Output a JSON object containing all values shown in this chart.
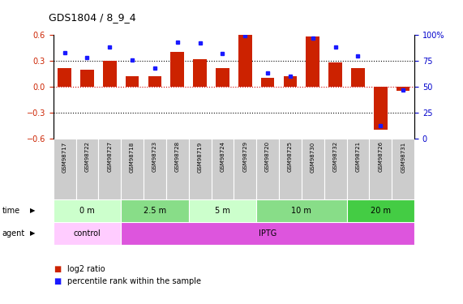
{
  "title": "GDS1804 / 8_9_4",
  "samples": [
    "GSM98717",
    "GSM98722",
    "GSM98727",
    "GSM98718",
    "GSM98723",
    "GSM98728",
    "GSM98719",
    "GSM98724",
    "GSM98729",
    "GSM98720",
    "GSM98725",
    "GSM98730",
    "GSM98732",
    "GSM98721",
    "GSM98726",
    "GSM98731"
  ],
  "log2_ratio": [
    0.22,
    0.2,
    0.3,
    0.12,
    0.12,
    0.4,
    0.32,
    0.22,
    0.6,
    0.1,
    0.12,
    0.58,
    0.28,
    0.22,
    -0.5,
    -0.05
  ],
  "pct_rank": [
    83,
    78,
    88,
    76,
    68,
    93,
    92,
    82,
    99,
    63,
    60,
    97,
    88,
    80,
    12,
    47
  ],
  "bar_color": "#cc2200",
  "dot_color": "#1a1aff",
  "ylim_left": [
    -0.6,
    0.6
  ],
  "ylim_right": [
    0,
    100
  ],
  "yticks_left": [
    -0.6,
    -0.3,
    0.0,
    0.3,
    0.6
  ],
  "yticks_right": [
    0,
    25,
    50,
    75,
    100
  ],
  "ytick_labels_right": [
    "0",
    "25",
    "50",
    "75",
    "100%"
  ],
  "time_groups": [
    {
      "label": "0 m",
      "start": 0,
      "end": 3,
      "color": "#ccffcc"
    },
    {
      "label": "2.5 m",
      "start": 3,
      "end": 6,
      "color": "#88dd88"
    },
    {
      "label": "5 m",
      "start": 6,
      "end": 9,
      "color": "#ccffcc"
    },
    {
      "label": "10 m",
      "start": 9,
      "end": 13,
      "color": "#88dd88"
    },
    {
      "label": "20 m",
      "start": 13,
      "end": 16,
      "color": "#44cc44"
    }
  ],
  "agent_groups": [
    {
      "label": "control",
      "start": 0,
      "end": 3,
      "color": "#ffccff"
    },
    {
      "label": "IPTG",
      "start": 3,
      "end": 16,
      "color": "#dd55dd"
    }
  ],
  "legend_items": [
    {
      "label": "log2 ratio",
      "color": "#cc2200"
    },
    {
      "label": "percentile rank within the sample",
      "color": "#1a1aff"
    }
  ],
  "sample_box_color": "#cccccc",
  "right_axis_color": "#0000cc",
  "left_axis_color": "#cc2200",
  "background_color": "#ffffff"
}
